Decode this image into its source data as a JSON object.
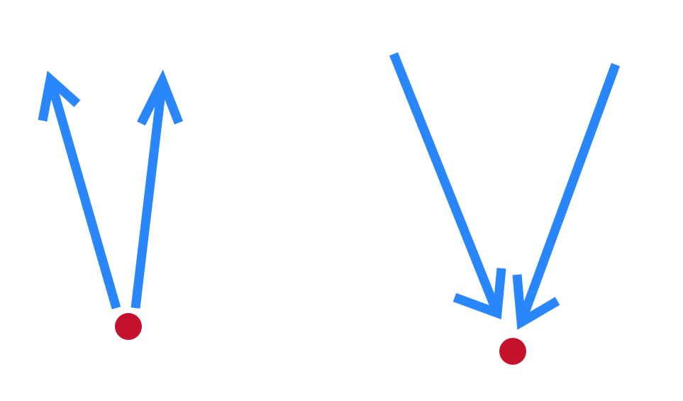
{
  "diagram": {
    "colors": {
      "background": "#ffffff",
      "arrow": "#2a86fb",
      "dot": "#c4122d"
    },
    "groups": [
      {
        "id": "outgoing",
        "dot_icon": "point-icon",
        "arrow_icons": [
          "arrow-up-left-icon",
          "arrow-up-right-icon"
        ]
      },
      {
        "id": "incoming",
        "dot_icon": "point-icon",
        "arrow_icons": [
          "arrow-down-right-icon",
          "arrow-down-left-icon"
        ]
      }
    ]
  }
}
